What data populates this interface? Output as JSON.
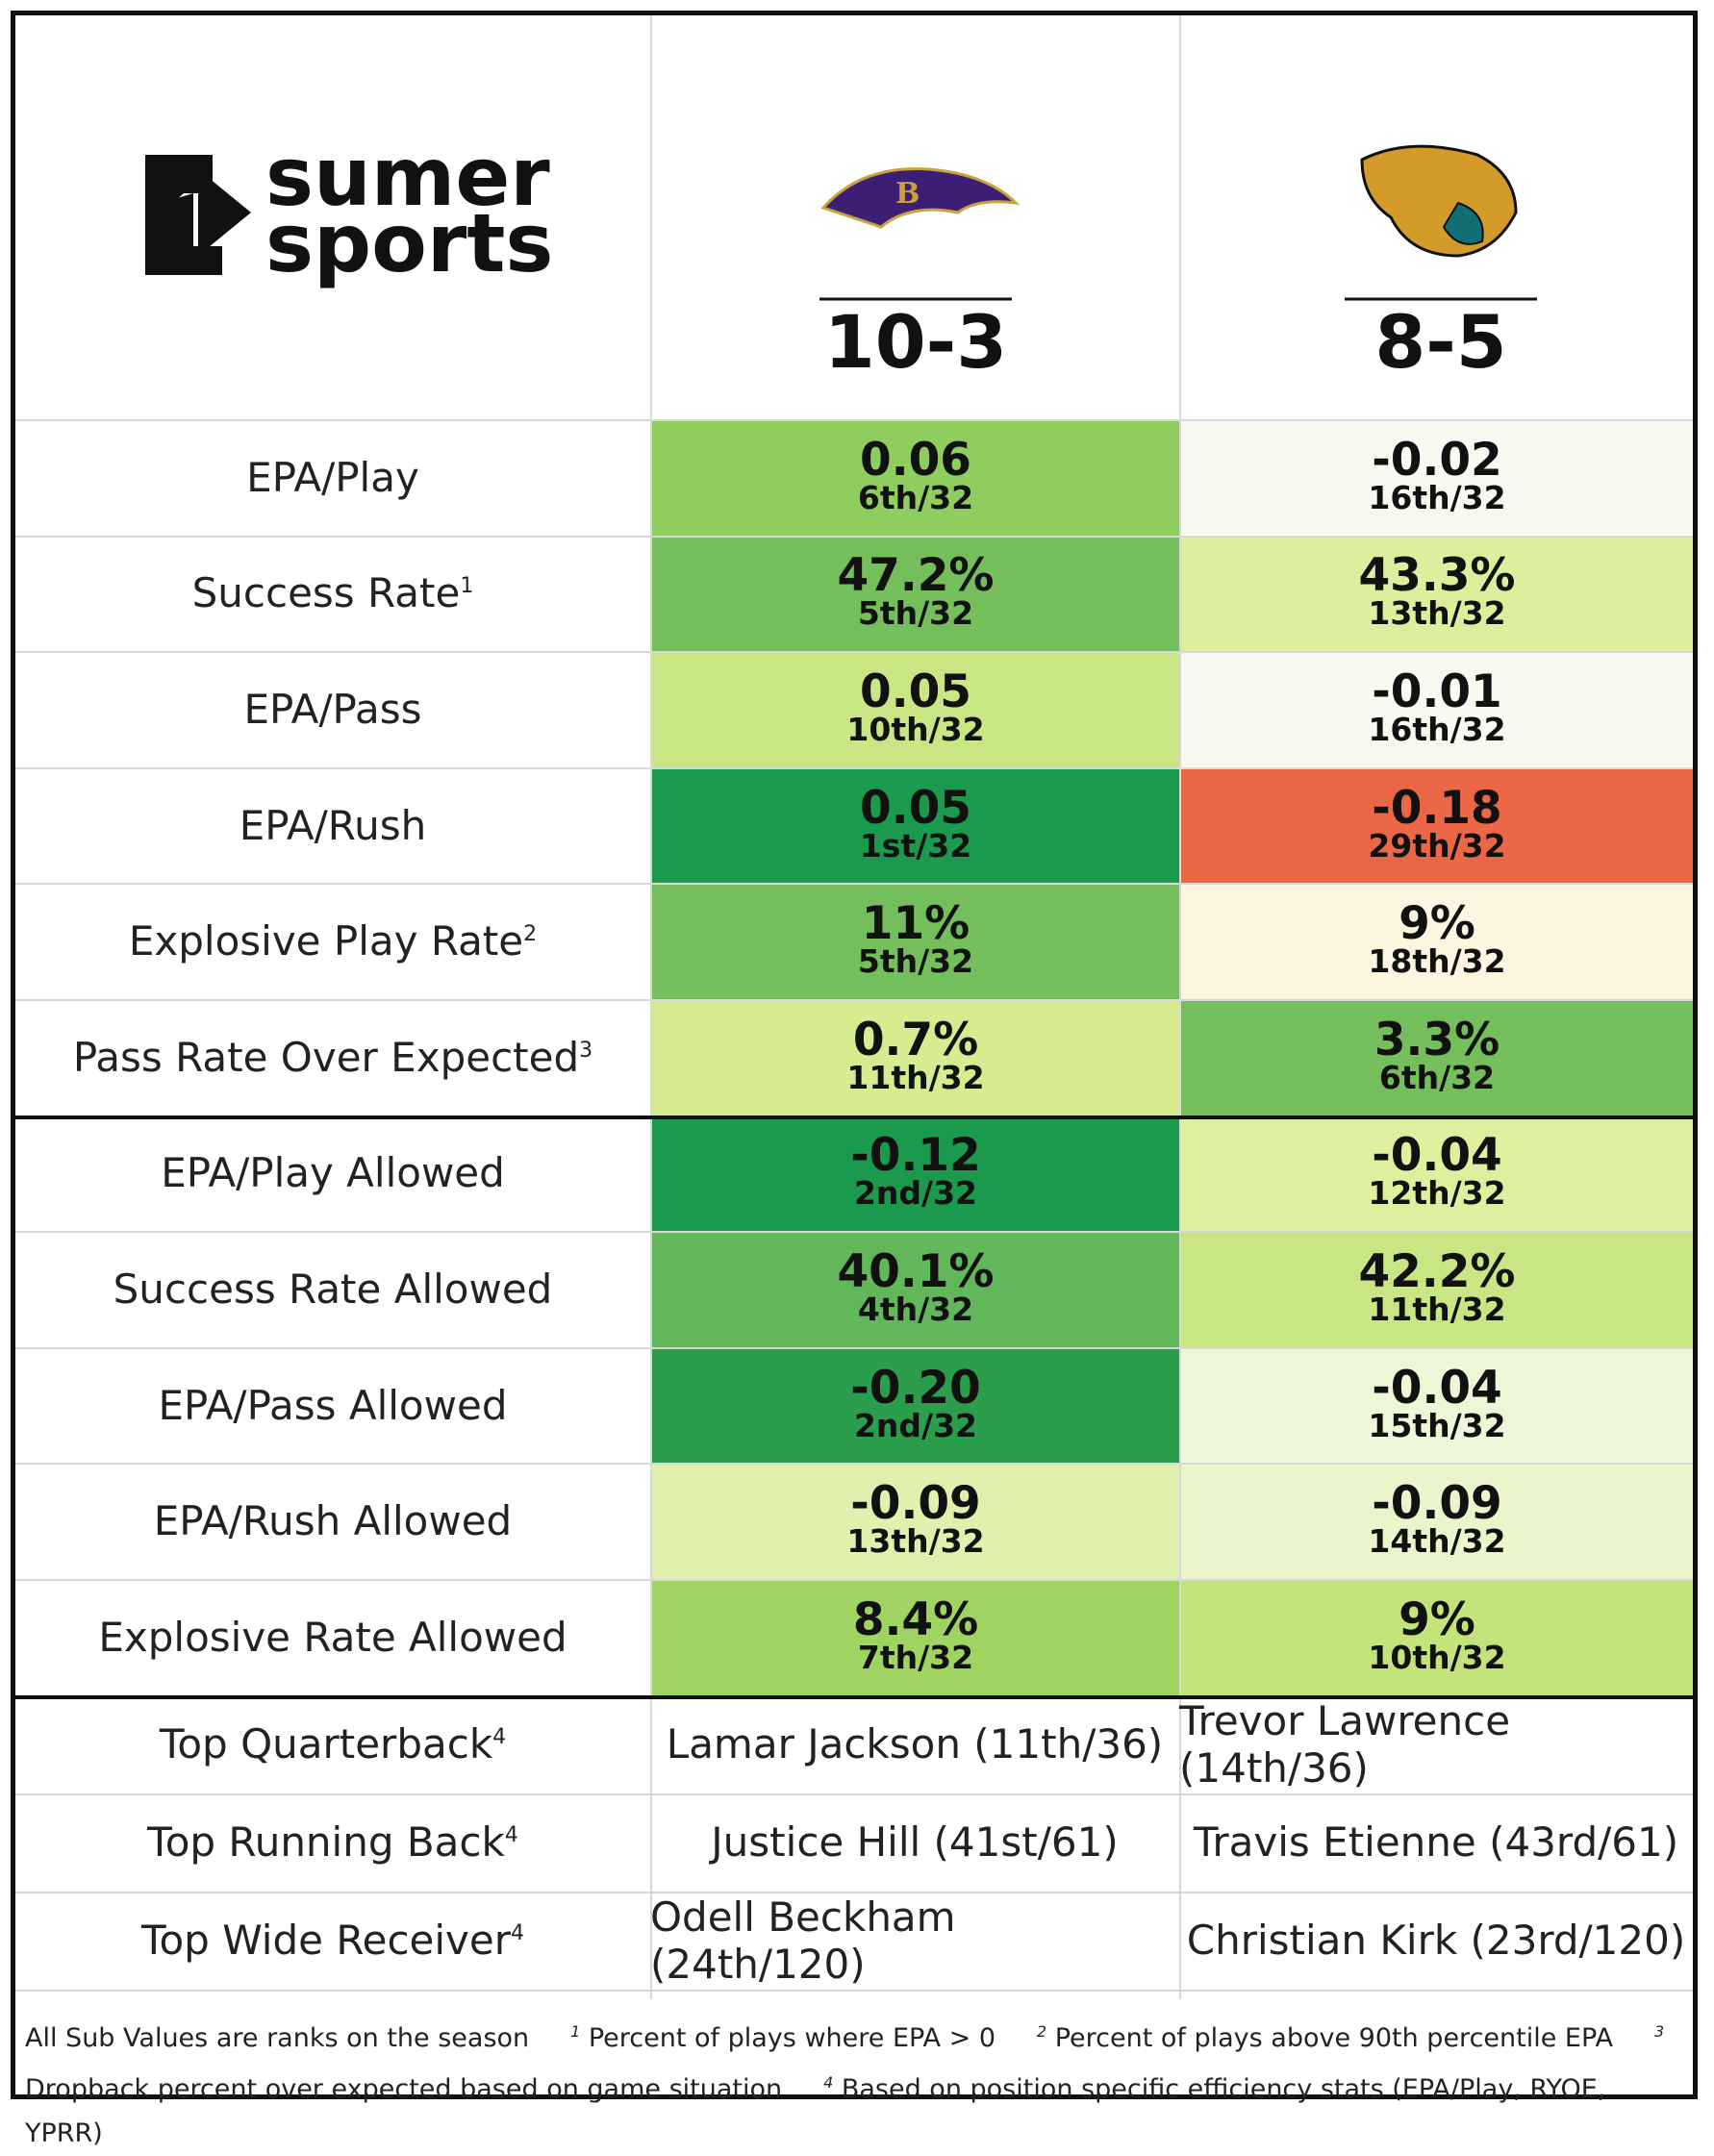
{
  "header": {
    "logo_text": [
      "sumer",
      "sports"
    ],
    "teams": [
      {
        "record": "10-3"
      },
      {
        "record": "8-5"
      }
    ]
  },
  "rows": [
    {
      "label": "EPA/Play",
      "note": null,
      "cells": [
        {
          "value": "0.06",
          "rank": "6th/32",
          "color": "#8fcd5e"
        },
        {
          "value": "-0.02",
          "rank": "16th/32",
          "color": "#f8faf0"
        }
      ]
    },
    {
      "label": "Success Rate",
      "note": "1",
      "cells": [
        {
          "value": "47.2%",
          "rank": "5th/32",
          "color": "#74bf5b"
        },
        {
          "value": "43.3%",
          "rank": "13th/32",
          "color": "#dcef9c"
        }
      ]
    },
    {
      "label": "EPA/Pass",
      "note": null,
      "cells": [
        {
          "value": "0.05",
          "rank": "10th/32",
          "color": "#c9e684"
        },
        {
          "value": "-0.01",
          "rank": "16th/32",
          "color": "#f8faf0"
        }
      ]
    },
    {
      "label": "EPA/Rush",
      "note": null,
      "cells": [
        {
          "value": "0.05",
          "rank": "1st/32",
          "color": "#1b9a4e"
        },
        {
          "value": "-0.18",
          "rank": "29th/32",
          "color": "#ec6745"
        }
      ]
    },
    {
      "label": "Explosive Play Rate",
      "note": "2",
      "cells": [
        {
          "value": "11%",
          "rank": "5th/32",
          "color": "#74bf5b"
        },
        {
          "value": "9%",
          "rank": "18th/32",
          "color": "#fdf5e0"
        }
      ]
    },
    {
      "label": "Pass Rate Over Expected",
      "note": "3",
      "cells": [
        {
          "value": "0.7%",
          "rank": "11th/32",
          "color": "#d7ec8f"
        },
        {
          "value": "3.3%",
          "rank": "6th/32",
          "color": "#74bf5b"
        }
      ]
    },
    {
      "label": "EPA/Play Allowed",
      "note": null,
      "cells": [
        {
          "value": "-0.12",
          "rank": "2nd/32",
          "color": "#1b9a4e"
        },
        {
          "value": "-0.04",
          "rank": "12th/32",
          "color": "#def09e"
        }
      ]
    },
    {
      "label": "Success Rate Allowed",
      "note": null,
      "cells": [
        {
          "value": "40.1%",
          "rank": "4th/32",
          "color": "#62b75a"
        },
        {
          "value": "42.2%",
          "rank": "11th/32",
          "color": "#c9e684"
        }
      ]
    },
    {
      "label": "EPA/Pass Allowed",
      "note": null,
      "cells": [
        {
          "value": "-0.20",
          "rank": "2nd/32",
          "color": "#2b9e4e"
        },
        {
          "value": "-0.04",
          "rank": "15th/32",
          "color": "#eef6d8"
        }
      ]
    },
    {
      "label": "EPA/Rush Allowed",
      "note": null,
      "cells": [
        {
          "value": "-0.09",
          "rank": "13th/32",
          "color": "#e0f1ae"
        },
        {
          "value": "-0.09",
          "rank": "14th/32",
          "color": "#eaf5cc"
        }
      ]
    },
    {
      "label": "Explosive Rate Allowed",
      "note": null,
      "cells": [
        {
          "value": "8.4%",
          "rank": "7th/32",
          "color": "#a0d462"
        },
        {
          "value": "9%",
          "rank": "10th/32",
          "color": "#c2e47a"
        }
      ]
    }
  ],
  "players": [
    {
      "label": "Top Quarterback",
      "note": "4",
      "cells": [
        "Lamar Jackson (11th/36)",
        "Trevor Lawrence (14th/36)"
      ]
    },
    {
      "label": "Top Running Back",
      "note": "4",
      "cells": [
        "Justice Hill (41st/61)",
        "Travis Etienne (43rd/61)"
      ]
    },
    {
      "label": "Top Wide Receiver",
      "note": "4",
      "cells": [
        "Odell Beckham (24th/120)",
        "Christian Kirk (23rd/120)"
      ]
    }
  ],
  "footer": {
    "intro": "All Sub Values are ranks on the season",
    "notes": [
      {
        "mark": "1",
        "text": "Percent of plays where EPA > 0"
      },
      {
        "mark": "2",
        "text": "Percent of plays above 90th percentile EPA"
      },
      {
        "mark": "3",
        "text": "Dropback percent over expected based on game situation"
      },
      {
        "mark": "4",
        "text": "Based on position specific efficiency stats (EPA/Play, RYOE, YPRR)"
      }
    ]
  }
}
